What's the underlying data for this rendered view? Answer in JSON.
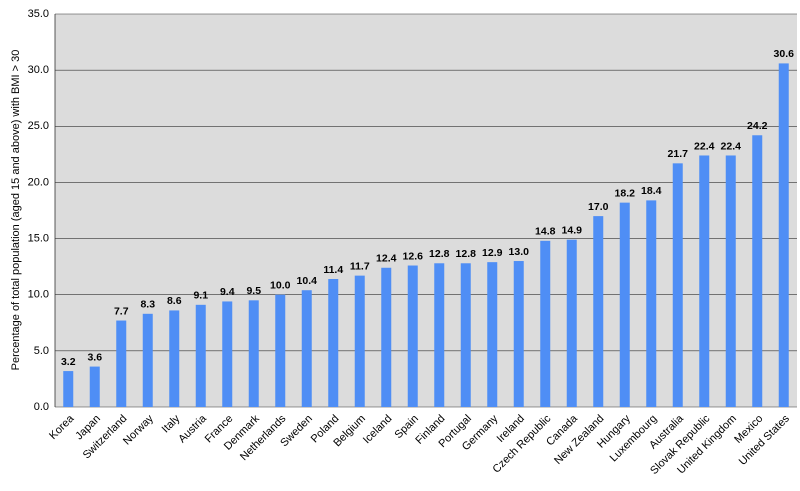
{
  "chart_data": {
    "type": "bar",
    "y_label": "Percentage of total population (aged 15 and above) with BMI > 30",
    "categories": [
      "Korea",
      "Japan",
      "Switzerland",
      "Norway",
      "Italy",
      "Austria",
      "France",
      "Denmark",
      "Netherlands",
      "Sweden",
      "Poland",
      "Belgium",
      "Iceland",
      "Spain",
      "Finland",
      "Portugal",
      "Germany",
      "Ireland",
      "Czech Republic",
      "Canada",
      "New Zealand",
      "Hungary",
      "Luxembourg",
      "Australia",
      "Slovak Republic",
      "United Kingdom",
      "Mexico",
      "United States"
    ],
    "values": [
      3.2,
      3.6,
      7.7,
      8.3,
      8.6,
      9.1,
      9.4,
      9.5,
      10.0,
      10.4,
      11.4,
      11.7,
      12.4,
      12.6,
      12.8,
      12.8,
      12.9,
      13.0,
      14.8,
      14.9,
      17.0,
      18.2,
      18.4,
      21.7,
      22.4,
      22.4,
      24.2,
      30.6
    ],
    "value_labels": [
      "3.2",
      "3.6",
      "7.7",
      "8.3",
      "8.6",
      "9.1",
      "9.4",
      "9.5",
      "10.0",
      "10.4",
      "11.4",
      "11.7",
      "12.4",
      "12.6",
      "12.8",
      "12.8",
      "12.9",
      "13.0",
      "14.8",
      "14.9",
      "17.0",
      "18.2",
      "18.4",
      "21.7",
      "22.4",
      "22.4",
      "24.2",
      "30.6"
    ],
    "color": "#4f8ef5",
    "ylim": [
      0,
      35
    ],
    "yticks": [
      {
        "value": 0,
        "label": "0.0"
      },
      {
        "value": 5,
        "label": "5.0"
      },
      {
        "value": 10,
        "label": "10.0"
      },
      {
        "value": 15,
        "label": "15.0"
      },
      {
        "value": 20,
        "label": "20.0"
      },
      {
        "value": 25,
        "label": "25.0"
      },
      {
        "value": 30,
        "label": "30.0"
      },
      {
        "value": 35,
        "label": "35.0"
      }
    ],
    "grid": true
  }
}
